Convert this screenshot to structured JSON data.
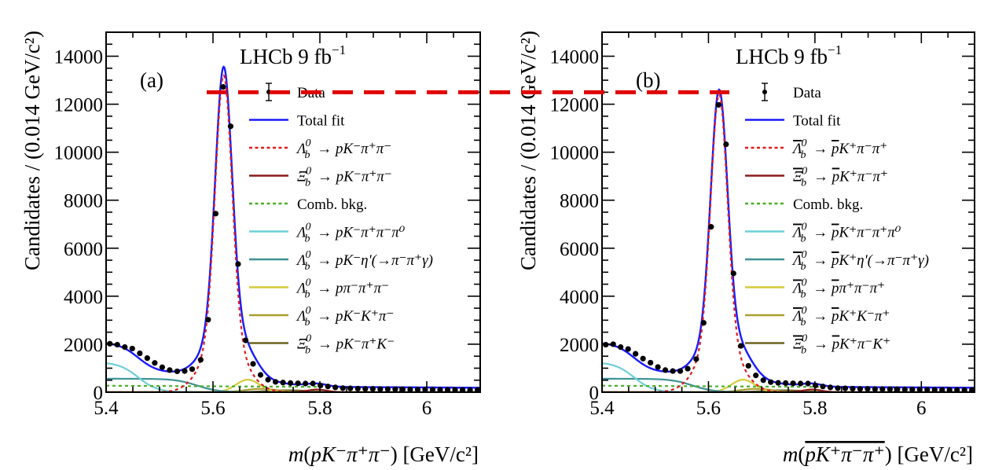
{
  "figure": {
    "annotation_line": {
      "y_value": 12500,
      "color": "#e00000",
      "style": "dashed",
      "spans": "from left-panel peak across to right-panel peak"
    }
  },
  "chart_data": [
    {
      "type": "scatter",
      "panel_label": "(a)",
      "experiment_label": "LHCb 9 fb",
      "experiment_label_sup": "−1",
      "xlabel": "m(pK⁻π⁺π⁻) [GeV/c²]",
      "xlabel_parts": {
        "m": "m",
        "open": "(",
        "body": "pK⁻π⁺π⁻",
        "close": ")",
        "unit": " [GeV/c²]"
      },
      "ylabel": "Candidates / (0.014 GeV/c²)",
      "xlim": [
        5.4,
        6.1
      ],
      "ylim": [
        0,
        15000
      ],
      "xticks": [
        5.4,
        5.6,
        5.8,
        6
      ],
      "xtick_labels": [
        "5.4",
        "5.6",
        "5.8",
        "6"
      ],
      "yticks": [
        0,
        2000,
        4000,
        6000,
        8000,
        10000,
        12000,
        14000
      ],
      "ytick_labels": [
        "0",
        "2000",
        "4000",
        "6000",
        "8000",
        "10000",
        "12000",
        "14000"
      ],
      "grid": false,
      "legend_position": "top-right",
      "legend": [
        {
          "label": "Data",
          "style": "errorbar",
          "color": "#000000"
        },
        {
          "label": "Total fit",
          "style": "solid",
          "color": "#1a1aff"
        },
        {
          "label": "Λ⁰_b → pK⁻π⁺π⁻",
          "style": "dotted",
          "color": "#e31a1c"
        },
        {
          "label": "Ξ⁰_b → pK⁻π⁺π⁻",
          "style": "solid",
          "color": "#8b1a1a"
        },
        {
          "label": "Comb. bkg.",
          "style": "dotted",
          "color": "#4daf2a"
        },
        {
          "label": "Λ⁰_b → pK⁻π⁺π⁻π⁰",
          "style": "solid",
          "color": "#6fcfd6"
        },
        {
          "label": "Λ⁰_b → pK⁻η'(→π⁻π⁺γ)",
          "style": "solid",
          "color": "#3f9296"
        },
        {
          "label": "Λ⁰_b → pπ⁻π⁺π⁻",
          "style": "solid",
          "color": "#d4cc3a"
        },
        {
          "label": "Λ⁰_b → pK⁻K⁺π⁻",
          "style": "solid",
          "color": "#a8a030"
        },
        {
          "label": "Ξ⁰_b → pK⁻π⁺K⁻",
          "style": "solid",
          "color": "#6b6420"
        }
      ],
      "legend_tex": [
        {
          "head": "",
          "tail": "Data"
        },
        {
          "head": "",
          "tail": "Total fit"
        },
        {
          "head": "Λ",
          "bar": false,
          "arrow": "pK⁻π⁺π⁻"
        },
        {
          "head": "Ξ",
          "bar": false,
          "arrow": "pK⁻π⁺π⁻"
        },
        {
          "head": "",
          "tail": "Comb. bkg."
        },
        {
          "head": "Λ",
          "bar": false,
          "arrow": "pK⁻π⁺π⁻π⁰"
        },
        {
          "head": "Λ",
          "bar": false,
          "arrow": "pK⁻η'(→π⁻π⁺γ)"
        },
        {
          "head": "Λ",
          "bar": false,
          "arrow": "pπ⁻π⁺π⁻"
        },
        {
          "head": "Λ",
          "bar": false,
          "arrow": "pK⁻K⁺π⁻"
        },
        {
          "head": "Ξ",
          "bar": false,
          "arrow": "pK⁻π⁺K⁻"
        }
      ],
      "data_x": [
        5.407,
        5.421,
        5.435,
        5.449,
        5.463,
        5.477,
        5.491,
        5.505,
        5.519,
        5.533,
        5.547,
        5.561,
        5.577,
        5.591,
        5.605,
        5.619,
        5.633,
        5.647,
        5.661,
        5.675,
        5.689,
        5.703,
        5.717,
        5.731,
        5.745,
        5.759,
        5.773,
        5.787,
        5.801,
        5.815,
        5.829,
        5.843,
        5.857,
        5.871,
        5.885,
        5.899,
        5.913,
        5.927,
        5.941,
        5.955,
        5.969,
        5.983,
        5.997,
        6.011,
        6.025,
        6.039,
        6.053,
        6.067,
        6.081,
        6.095
      ],
      "data_y": [
        2020,
        1980,
        1880,
        1820,
        1620,
        1420,
        1220,
        1040,
        920,
        870,
        880,
        960,
        1350,
        3020,
        7440,
        12720,
        11080,
        5340,
        2160,
        1180,
        720,
        520,
        430,
        400,
        380,
        370,
        360,
        360,
        280,
        240,
        200,
        170,
        160,
        150,
        140,
        140,
        130,
        130,
        125,
        120,
        115,
        110,
        110,
        105,
        100,
        100,
        95,
        95,
        90,
        90
      ],
      "peak_fit_max": 13600,
      "peak_signal_max": 13200
    },
    {
      "type": "scatter",
      "panel_label": "(b)",
      "experiment_label": "LHCb 9 fb",
      "experiment_label_sup": "−1",
      "xlabel": "m(p̅K⁺π⁻π⁺) [GeV/c²]",
      "xlabel_parts": {
        "m": "m",
        "open": "(",
        "body": "pK⁺π⁻π⁺",
        "close": ")",
        "unit": " [GeV/c²]"
      },
      "ylabel": "Candidates / (0.014 GeV/c²)",
      "xlim": [
        5.4,
        6.1
      ],
      "ylim": [
        0,
        15000
      ],
      "xticks": [
        5.4,
        5.6,
        5.8,
        6
      ],
      "xtick_labels": [
        "5.4",
        "5.6",
        "5.8",
        "6"
      ],
      "yticks": [
        0,
        2000,
        4000,
        6000,
        8000,
        10000,
        12000,
        14000
      ],
      "ytick_labels": [
        "0",
        "2000",
        "4000",
        "6000",
        "8000",
        "10000",
        "12000",
        "14000"
      ],
      "grid": false,
      "legend_position": "top-right",
      "legend": [
        {
          "label": "Data",
          "style": "errorbar",
          "color": "#000000"
        },
        {
          "label": "Total fit",
          "style": "solid",
          "color": "#1a1aff"
        },
        {
          "label": "Λ̅⁰_b → p̅K⁺π⁻π⁺",
          "style": "dotted",
          "color": "#e31a1c"
        },
        {
          "label": "Ξ̅⁰_b → p̅K⁺π⁻π⁺",
          "style": "solid",
          "color": "#8b1a1a"
        },
        {
          "label": "Comb. bkg.",
          "style": "dotted",
          "color": "#4daf2a"
        },
        {
          "label": "Λ̅⁰_b → p̅K⁺π⁻π⁺π⁰",
          "style": "solid",
          "color": "#6fcfd6"
        },
        {
          "label": "Λ̅⁰_b → p̅K⁺η'(→π⁻π⁺γ)",
          "style": "solid",
          "color": "#3f9296"
        },
        {
          "label": "Λ̅⁰_b → p̅π⁺π⁻π⁺",
          "style": "solid",
          "color": "#d4cc3a"
        },
        {
          "label": "Λ̅⁰_b → p̅K⁺K⁻π⁺",
          "style": "solid",
          "color": "#a8a030"
        },
        {
          "label": "Ξ̅⁰_b → p̅K⁺π⁻K⁺",
          "style": "solid",
          "color": "#6b6420"
        }
      ],
      "legend_tex": [
        {
          "head": "",
          "tail": "Data"
        },
        {
          "head": "",
          "tail": "Total fit"
        },
        {
          "head": "Λ",
          "bar": true,
          "arrow": "pK⁺π⁻π⁺"
        },
        {
          "head": "Ξ",
          "bar": true,
          "arrow": "pK⁺π⁻π⁺"
        },
        {
          "head": "",
          "tail": "Comb. bkg."
        },
        {
          "head": "Λ",
          "bar": true,
          "arrow": "pK⁺π⁻π⁺π⁰"
        },
        {
          "head": "Λ",
          "bar": true,
          "arrow": "pK⁺η'(→π⁻π⁺γ)"
        },
        {
          "head": "Λ",
          "bar": true,
          "arrow": "pπ⁺π⁻π⁺"
        },
        {
          "head": "Λ",
          "bar": true,
          "arrow": "pK⁺K⁻π⁺"
        },
        {
          "head": "Ξ",
          "bar": true,
          "arrow": "pK⁺π⁻K⁺"
        }
      ],
      "data_x": [
        5.407,
        5.421,
        5.435,
        5.449,
        5.463,
        5.477,
        5.491,
        5.505,
        5.519,
        5.533,
        5.547,
        5.561,
        5.577,
        5.591,
        5.605,
        5.619,
        5.633,
        5.647,
        5.661,
        5.675,
        5.689,
        5.703,
        5.717,
        5.731,
        5.745,
        5.759,
        5.773,
        5.787,
        5.801,
        5.815,
        5.829,
        5.843,
        5.857,
        5.871,
        5.885,
        5.899,
        5.913,
        5.927,
        5.941,
        5.955,
        5.969,
        5.983,
        5.997,
        6.011,
        6.025,
        6.039,
        6.053,
        6.067,
        6.081,
        6.095
      ],
      "data_y": [
        1980,
        2000,
        1880,
        1800,
        1600,
        1400,
        1230,
        1050,
        920,
        880,
        880,
        980,
        1380,
        2890,
        6890,
        11970,
        10330,
        4950,
        1930,
        1100,
        700,
        500,
        420,
        390,
        380,
        370,
        360,
        360,
        280,
        240,
        200,
        170,
        160,
        150,
        140,
        140,
        130,
        130,
        125,
        120,
        115,
        110,
        110,
        105,
        100,
        100,
        95,
        95,
        90,
        90
      ],
      "peak_fit_max": 12650,
      "peak_signal_max": 12400
    }
  ]
}
